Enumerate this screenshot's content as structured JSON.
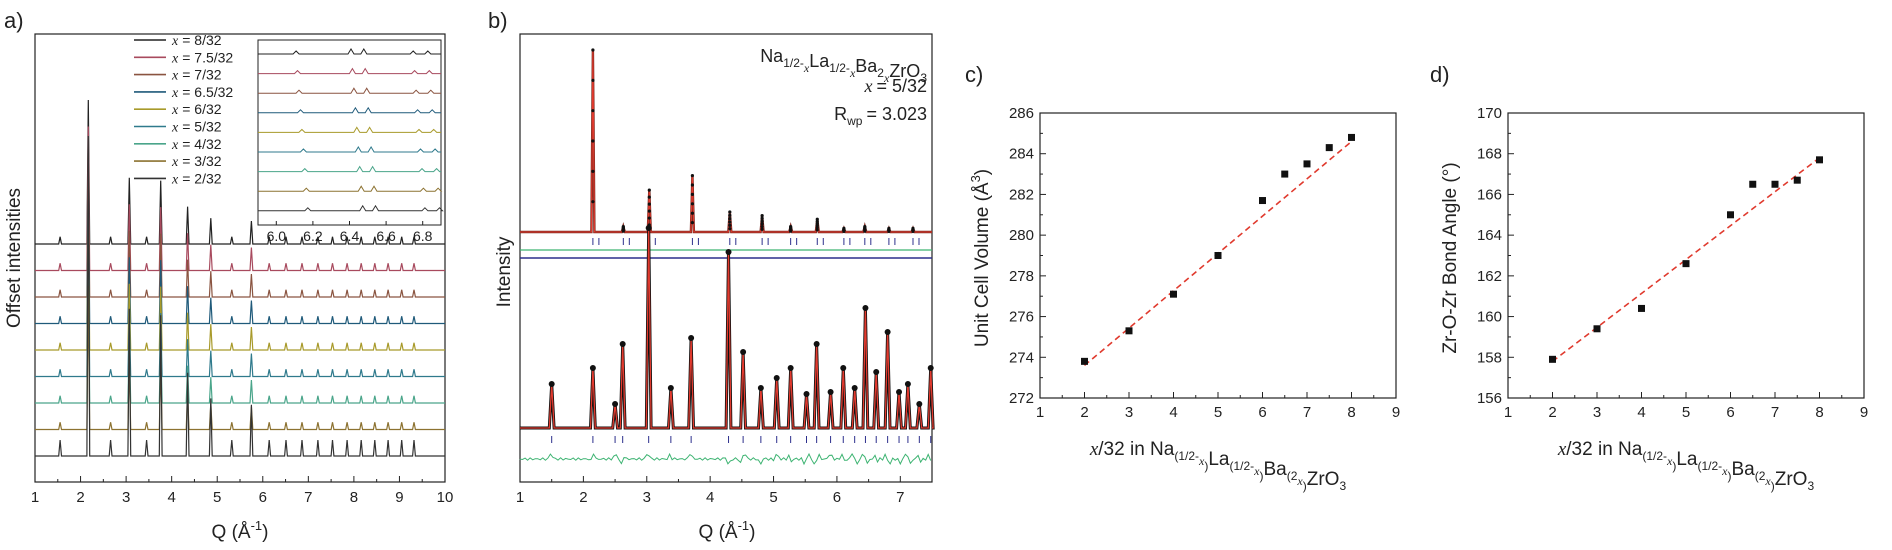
{
  "figure": {
    "panel_labels": [
      "a)",
      "b)",
      "c)",
      "d)"
    ]
  },
  "chart_data": [
    {
      "type": "line",
      "panel": "a)",
      "ylabel": "Offset intensities",
      "xlabel": "Q (Å",
      "xlabel_sup": "-1",
      "xlabel_end": ")",
      "xlim": [
        1,
        10
      ],
      "xticks": [
        "1",
        "2",
        "3",
        "4",
        "5",
        "6",
        "7",
        "8",
        "9",
        "10"
      ],
      "peaks": [
        1.55,
        2.17,
        2.66,
        3.07,
        3.45,
        3.76,
        4.35,
        4.86,
        5.32,
        5.75,
        6.14,
        6.51,
        6.86,
        7.21,
        7.53,
        7.85,
        8.16,
        8.46,
        8.75,
        9.05,
        9.32
      ],
      "series": [
        {
          "name": "x = 8/32",
          "color": "#222222"
        },
        {
          "name": "x = 7.5/32",
          "color": "#a84a5e"
        },
        {
          "name": "x = 7/32",
          "color": "#8a5440"
        },
        {
          "name": "x = 6.5/32",
          "color": "#1f5a7a"
        },
        {
          "name": "x = 6/32",
          "color": "#a89a2a"
        },
        {
          "name": "x = 5/32",
          "color": "#2f7a8c"
        },
        {
          "name": "x = 4/32",
          "color": "#4aa58a"
        },
        {
          "name": "x = 3/32",
          "color": "#8c7230"
        },
        {
          "name": "x = 2/32",
          "color": "#333333"
        }
      ],
      "legend_prefix": "x",
      "legend_values": [
        "= 8/32",
        "= 7.5/32",
        "= 7/32",
        "= 6.5/32",
        "= 6/32",
        "= 5/32",
        "= 4/32",
        "= 3/32",
        "= 2/32"
      ],
      "inset": {
        "xlim": [
          5.9,
          6.9
        ],
        "xticks": [
          "6.0",
          "6.2",
          "6.4",
          "6.6",
          "6.8"
        ],
        "peaks": [
          6.14,
          6.44,
          6.51,
          6.78,
          6.86
        ]
      }
    },
    {
      "type": "line",
      "panel": "b)",
      "ylabel": "Intensity",
      "xlabel": "Q (Å",
      "xlabel_sup": "-1",
      "xlabel_end": ")",
      "xlim": [
        1,
        7.5
      ],
      "xticks": [
        "1",
        "2",
        "3",
        "4",
        "5",
        "6",
        "7"
      ],
      "formula_parts": [
        [
          "Na",
          ""
        ],
        [
          "1/2-",
          "sub"
        ],
        [
          "x",
          "subi"
        ],
        [
          "La",
          ""
        ],
        [
          "1/2-",
          "sub"
        ],
        [
          "x",
          "subi"
        ],
        [
          "Ba",
          ""
        ],
        [
          "2",
          "sub"
        ],
        [
          "x",
          "subi"
        ],
        [
          "ZrO",
          ""
        ],
        [
          "3",
          "sub"
        ]
      ],
      "x_value": "= 5/32",
      "x_symbol": "x",
      "rwp_symbol": "R",
      "rwp_sub": "wp",
      "rwp_value": "= 3.023",
      "top_peaks": [
        [
          2.15,
          1.0
        ],
        [
          2.63,
          0.03
        ],
        [
          3.04,
          0.23
        ],
        [
          3.72,
          0.31
        ],
        [
          4.31,
          0.11
        ],
        [
          4.82,
          0.09
        ],
        [
          5.27,
          0.03
        ],
        [
          5.69,
          0.07
        ],
        [
          6.11,
          0.02
        ],
        [
          6.44,
          0.03
        ],
        [
          6.82,
          0.02
        ],
        [
          7.2,
          0.02
        ]
      ],
      "bottom_peaks": [
        [
          1.5,
          0.22
        ],
        [
          2.15,
          0.3
        ],
        [
          2.5,
          0.12
        ],
        [
          2.62,
          0.42
        ],
        [
          3.03,
          1.0
        ],
        [
          3.38,
          0.2
        ],
        [
          3.7,
          0.45
        ],
        [
          4.29,
          0.88
        ],
        [
          4.52,
          0.38
        ],
        [
          4.8,
          0.2
        ],
        [
          5.05,
          0.25
        ],
        [
          5.27,
          0.3
        ],
        [
          5.52,
          0.17
        ],
        [
          5.68,
          0.42
        ],
        [
          5.9,
          0.18
        ],
        [
          6.1,
          0.3
        ],
        [
          6.28,
          0.2
        ],
        [
          6.45,
          0.6
        ],
        [
          6.62,
          0.28
        ],
        [
          6.8,
          0.48
        ],
        [
          6.98,
          0.18
        ],
        [
          7.12,
          0.22
        ],
        [
          7.3,
          0.12
        ],
        [
          7.48,
          0.3
        ]
      ]
    },
    {
      "type": "scatter",
      "panel": "c)",
      "ylabel": "Unit Cell Volume (Å",
      "ylabel_sup": "3",
      "ylabel_end": ")",
      "xlim": [
        1,
        9
      ],
      "ylim": [
        272,
        286
      ],
      "xticks": [
        1,
        2,
        3,
        4,
        5,
        6,
        7,
        8,
        9
      ],
      "yticks": [
        272,
        274,
        276,
        278,
        280,
        282,
        284,
        286
      ],
      "x": [
        2,
        3,
        4,
        5,
        6,
        6.5,
        7,
        7.5,
        8
      ],
      "y": [
        273.8,
        275.3,
        277.1,
        279.0,
        281.7,
        283.0,
        283.5,
        284.3,
        284.8
      ],
      "fit": {
        "x": [
          2,
          8
        ],
        "y": [
          273.6,
          284.6
        ],
        "color": "#e03a2e"
      },
      "xlabel_parts": [
        [
          "x",
          "i"
        ],
        [
          "/32 in Na",
          ""
        ],
        [
          "(1/2-",
          "sub"
        ],
        [
          "x",
          "subi"
        ],
        [
          ")",
          "sub"
        ],
        [
          "La",
          ""
        ],
        [
          "(1/2-",
          "sub"
        ],
        [
          "x",
          "subi"
        ],
        [
          ")",
          "sub"
        ],
        [
          "Ba",
          ""
        ],
        [
          "(2",
          "sub"
        ],
        [
          "x",
          "subi"
        ],
        [
          ")",
          "sub"
        ],
        [
          "ZrO",
          ""
        ],
        [
          "3",
          "sub"
        ]
      ]
    },
    {
      "type": "scatter",
      "panel": "d)",
      "ylabel": "Zr-O-Zr Bond Angle (°)",
      "xlim": [
        1,
        9
      ],
      "ylim": [
        156,
        170
      ],
      "xticks": [
        1,
        2,
        3,
        4,
        5,
        6,
        7,
        8,
        9
      ],
      "yticks": [
        156,
        158,
        160,
        162,
        164,
        166,
        168,
        170
      ],
      "x": [
        2,
        3,
        4,
        5,
        6,
        6.5,
        7,
        7.5,
        8
      ],
      "y": [
        157.9,
        159.4,
        160.4,
        162.6,
        165.0,
        166.5,
        166.5,
        166.7,
        167.7
      ],
      "fit": {
        "x": [
          2,
          8
        ],
        "y": [
          157.8,
          167.8
        ],
        "color": "#e03a2e"
      },
      "xlabel_parts": [
        [
          "x",
          "i"
        ],
        [
          "/32 in Na",
          ""
        ],
        [
          "(1/2-",
          "sub"
        ],
        [
          "x",
          "subi"
        ],
        [
          ")",
          "sub"
        ],
        [
          "La",
          ""
        ],
        [
          "(1/2-",
          "sub"
        ],
        [
          "x",
          "subi"
        ],
        [
          ")",
          "sub"
        ],
        [
          "Ba",
          ""
        ],
        [
          "(2",
          "sub"
        ],
        [
          "x",
          "subi"
        ],
        [
          ")",
          "sub"
        ],
        [
          "ZrO",
          ""
        ],
        [
          "3",
          "sub"
        ]
      ]
    }
  ]
}
